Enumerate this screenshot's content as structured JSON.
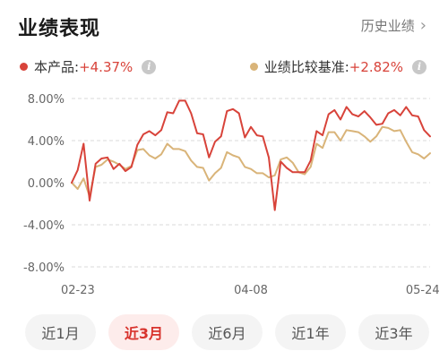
{
  "header": {
    "title": "业绩表现",
    "history_link": "历史业绩"
  },
  "legend": {
    "product": {
      "label": "本产品:",
      "value": "+4.37%",
      "color": "#d8433a"
    },
    "benchmark": {
      "label": "业绩比较基准:",
      "value": "+2.82%",
      "color": "#d9b479"
    }
  },
  "tabs": [
    {
      "label": "近1月",
      "active": false
    },
    {
      "label": "近3月",
      "active": true
    },
    {
      "label": "近6月",
      "active": false
    },
    {
      "label": "近1年",
      "active": false
    },
    {
      "label": "近3年",
      "active": false
    }
  ],
  "chart_data": {
    "type": "line",
    "title": "",
    "xlabel": "",
    "ylabel": "",
    "ylim": [
      -8,
      8
    ],
    "y_ticks": [
      "8.00%",
      "4.00%",
      "0.00%",
      "-4.00%",
      "-8.00%"
    ],
    "y_tick_values": [
      8,
      4,
      0,
      -4,
      -8
    ],
    "x_tick_labels": [
      "02-23",
      "04-08",
      "05-24"
    ],
    "x_tick_index": [
      0,
      30,
      61
    ],
    "grid": true,
    "series": [
      {
        "name": "本产品",
        "color": "#d8433a",
        "values": [
          0.0,
          1.2,
          3.7,
          -1.7,
          1.8,
          2.3,
          2.4,
          1.3,
          1.8,
          1.1,
          1.5,
          3.6,
          4.6,
          4.9,
          4.5,
          5.0,
          6.7,
          6.6,
          7.8,
          7.8,
          6.6,
          4.7,
          4.6,
          2.4,
          3.9,
          4.4,
          6.8,
          7.0,
          6.6,
          4.3,
          5.3,
          4.5,
          4.4,
          2.4,
          -2.6,
          2.0,
          1.4,
          1.0,
          1.0,
          1.0,
          2.1,
          4.9,
          4.5,
          6.5,
          6.9,
          6.0,
          7.2,
          6.5,
          6.3,
          6.8,
          6.2,
          5.5,
          5.6,
          6.6,
          6.9,
          6.4,
          7.2,
          6.4,
          6.3,
          5.0,
          4.4
        ]
      },
      {
        "name": "业绩比较基准",
        "color": "#d9b479",
        "values": [
          0.0,
          -0.6,
          0.4,
          -1.3,
          1.5,
          1.7,
          2.2,
          2.0,
          1.7,
          1.3,
          1.6,
          3.1,
          3.2,
          2.6,
          2.3,
          2.7,
          3.7,
          3.2,
          3.2,
          3.0,
          2.1,
          1.5,
          1.4,
          0.2,
          0.9,
          1.4,
          2.9,
          2.6,
          2.4,
          1.5,
          1.3,
          0.9,
          0.9,
          0.5,
          0.7,
          2.2,
          2.4,
          1.9,
          1.0,
          0.8,
          1.5,
          3.7,
          3.3,
          4.8,
          4.8,
          4.0,
          5.0,
          4.9,
          4.8,
          4.4,
          3.9,
          4.4,
          5.3,
          5.2,
          4.9,
          5.0,
          3.9,
          2.9,
          2.7,
          2.3,
          2.8
        ]
      }
    ]
  }
}
